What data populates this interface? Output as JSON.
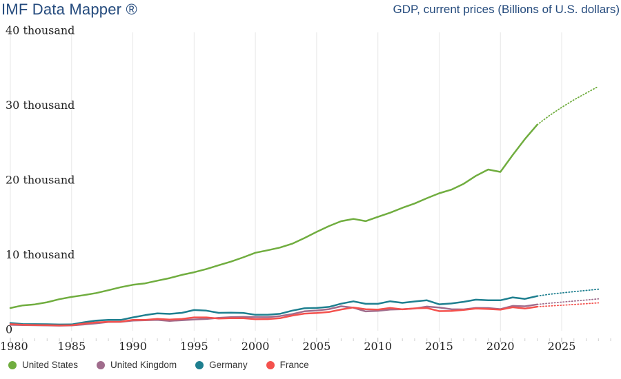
{
  "header": {
    "title": "IMF Data Mapper ®",
    "subtitle": "GDP, current prices (Billions of U.S. dollars)"
  },
  "colors": {
    "brand_navy": "#254B7D",
    "axis_text": "#222222",
    "gridline": "#E7E7E7",
    "tick_minor": "#CFCFCF",
    "tick_major": "#B9B9B9",
    "legend_text": "#333333"
  },
  "chart_data": {
    "type": "line",
    "title": "GDP, current prices (Billions of U.S. dollars)",
    "units": "Billions of U.S. dollars",
    "xlim": [
      1980,
      2029
    ],
    "ylim": [
      0,
      40000
    ],
    "grid": "vertical-only",
    "legend_position": "bottom-left",
    "forecast_start_year": 2023,
    "x_start_year": 1980,
    "x_ticks": [
      {
        "value": 1980,
        "label": "1980"
      },
      {
        "value": 1985,
        "label": "1985"
      },
      {
        "value": 1990,
        "label": "1990"
      },
      {
        "value": 1995,
        "label": "1995"
      },
      {
        "value": 2000,
        "label": "2000"
      },
      {
        "value": 2005,
        "label": "2005"
      },
      {
        "value": 2010,
        "label": "2010"
      },
      {
        "value": 2015,
        "label": "2015"
      },
      {
        "value": 2020,
        "label": "2020"
      },
      {
        "value": 2025,
        "label": "2025"
      }
    ],
    "y_ticks": [
      {
        "value": 0,
        "label": "0"
      },
      {
        "value": 10000,
        "label": "10 thousand"
      },
      {
        "value": 20000,
        "label": "20 thousand"
      },
      {
        "value": 30000,
        "label": "30 thousand"
      },
      {
        "value": 40000,
        "label": "40 thousand"
      }
    ],
    "series": [
      {
        "name": "United States",
        "color": "#70AD3F",
        "values": [
          2857,
          3207,
          3344,
          3634,
          4038,
          4339,
          4580,
          4855,
          5236,
          5642,
          5963,
          6158,
          6520,
          6859,
          7287,
          7640,
          8073,
          8578,
          9063,
          9631,
          10251,
          10582,
          10936,
          11458,
          12214,
          13037,
          13815,
          14474,
          14770,
          14478,
          15049,
          15600,
          16254,
          16843,
          17551,
          18206,
          18695,
          19477,
          20533,
          21381,
          21060,
          23315,
          25464,
          27361,
          28600,
          29700,
          30700,
          31600,
          32500
        ]
      },
      {
        "name": "United Kingdom",
        "color": "#A06C8C",
        "values": [
          604,
          585,
          557,
          528,
          500,
          534,
          655,
          808,
          983,
          1002,
          1170,
          1223,
          1270,
          1134,
          1224,
          1324,
          1395,
          1540,
          1634,
          1666,
          1648,
          1629,
          1777,
          2047,
          2413,
          2526,
          2706,
          3087,
          2905,
          2403,
          2479,
          2655,
          2701,
          2783,
          3055,
          2921,
          2689,
          2676,
          2867,
          2857,
          2709,
          3146,
          3089,
          3340,
          3500,
          3650,
          3790,
          3930,
          4080
        ]
      },
      {
        "name": "Germany",
        "color": "#1E7F8F",
        "values": [
          854,
          718,
          697,
          694,
          656,
          664,
          949,
          1182,
          1272,
          1262,
          1601,
          1906,
          2136,
          2074,
          2212,
          2592,
          2504,
          2216,
          2243,
          2202,
          1955,
          1951,
          2080,
          2506,
          2819,
          2866,
          3003,
          3440,
          3752,
          3418,
          3417,
          3761,
          3546,
          3734,
          3889,
          3358,
          3469,
          3690,
          3975,
          3889,
          3887,
          4278,
          4082,
          4456,
          4700,
          4880,
          5050,
          5210,
          5370
        ]
      },
      {
        "name": "France",
        "color": "#F4514D",
        "values": [
          701,
          615,
          584,
          559,
          530,
          553,
          771,
          934,
          1018,
          1025,
          1269,
          1269,
          1401,
          1322,
          1393,
          1601,
          1605,
          1452,
          1503,
          1493,
          1362,
          1376,
          1494,
          1840,
          2115,
          2196,
          2320,
          2660,
          2930,
          2700,
          2645,
          2865,
          2683,
          2811,
          2855,
          2439,
          2471,
          2595,
          2790,
          2728,
          2639,
          2959,
          2780,
          3030,
          3130,
          3230,
          3330,
          3440,
          3550
        ]
      }
    ]
  }
}
